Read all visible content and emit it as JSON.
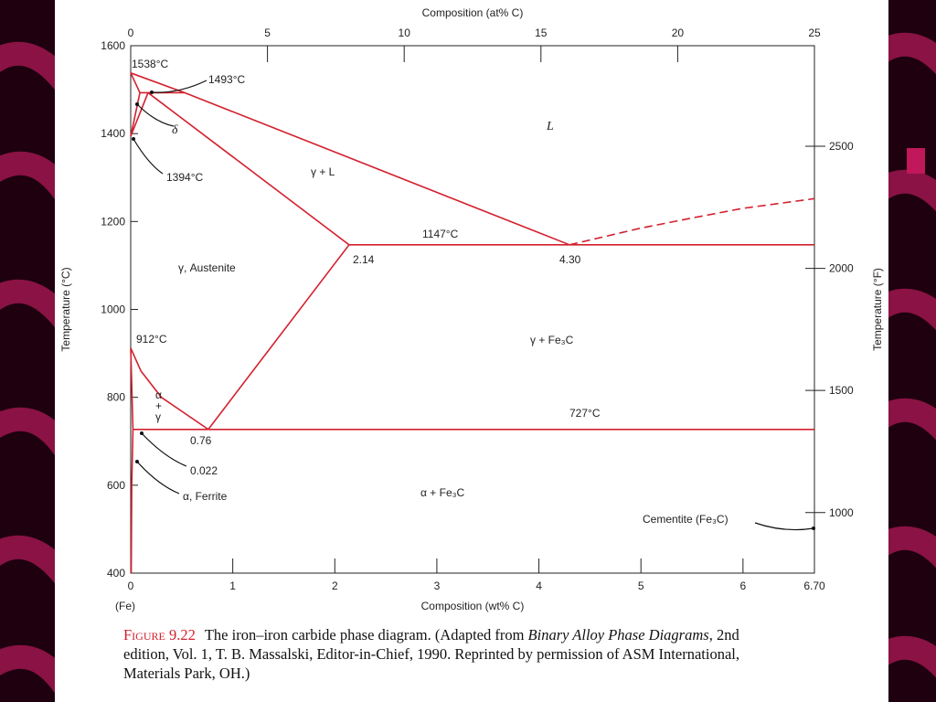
{
  "chart_data": {
    "type": "phase-diagram",
    "x_label": "Composition (wt% C)",
    "x2_label": "Composition (at% C)",
    "y_label": "Temperature (°C)",
    "y2_label": "Temperature (°F)",
    "x_origin_label": "(Fe)",
    "xlim": [
      0,
      6.7
    ],
    "xticks": [
      0,
      1,
      2,
      3,
      4,
      5,
      6,
      {
        "value": 6.7,
        "label": "6.70"
      }
    ],
    "x2lim": [
      0,
      25
    ],
    "x2ticks": [
      0,
      5,
      10,
      15,
      20,
      25
    ],
    "ylim": [
      400,
      1600
    ],
    "yticks": [
      400,
      600,
      800,
      1000,
      1200,
      1400,
      1600
    ],
    "y2lim": [
      752,
      2912
    ],
    "y2ticks": [
      1000,
      1500,
      2000,
      2500
    ],
    "color": "#d3202e",
    "series": [
      {
        "x": [
          0,
          0.53,
          4.3
        ],
        "values": [
          1538,
          1493,
          1147
        ]
      },
      {
        "x": [
          4.3,
          5.0,
          5.5,
          6.0,
          6.7
        ],
        "values": [
          1147,
          1185,
          1208,
          1230,
          1252
        ],
        "dashed": true
      },
      {
        "x": [
          0,
          0.09
        ],
        "values": [
          1538,
          1493
        ]
      },
      {
        "x": [
          0.09,
          0.53
        ],
        "values": [
          1493,
          1493
        ]
      },
      {
        "x": [
          0,
          0.09
        ],
        "values": [
          1394,
          1493
        ]
      },
      {
        "x": [
          0,
          0.17
        ],
        "values": [
          1394,
          1493
        ]
      },
      {
        "x": [
          0.17,
          2.14
        ],
        "values": [
          1493,
          1147
        ]
      },
      {
        "x": [
          2.14,
          6.7
        ],
        "values": [
          1147,
          1147
        ]
      },
      {
        "x": [
          2.14,
          0.76
        ],
        "values": [
          1147,
          727
        ]
      },
      {
        "x": [
          0,
          0.1,
          0.3,
          0.76
        ],
        "values": [
          912,
          860,
          800,
          727
        ]
      },
      {
        "x": [
          0,
          0.022
        ],
        "values": [
          912,
          727
        ]
      },
      {
        "x": [
          0.022,
          6.7
        ],
        "values": [
          727,
          727
        ]
      },
      {
        "x": [
          0.022,
          0.01,
          0.005
        ],
        "values": [
          727,
          600,
          400
        ]
      }
    ],
    "annotations": [
      "1538°C",
      "1493°C",
      "δ",
      "L",
      "1394°C",
      "γ + L",
      "1147°C",
      "2.14",
      "4.30",
      "γ, Austenite",
      "912°C",
      "γ + Fe₃C",
      "α + γ",
      "727°C",
      "0.76",
      "0.022",
      "α, Ferrite",
      "α + Fe₃C",
      "Cementite (Fe₃C)"
    ]
  },
  "caption": {
    "label": "Figure 9.22",
    "text_1": "The iron–iron carbide phase diagram. (Adapted from ",
    "italic": "Binary Alloy Phase Diagrams",
    "text_2": ", 2nd edition, Vol. 1, T. B. Massalski, Editor-in-Chief, 1990. Reprinted by permission of ASM International, Materials Park, OH.)"
  }
}
